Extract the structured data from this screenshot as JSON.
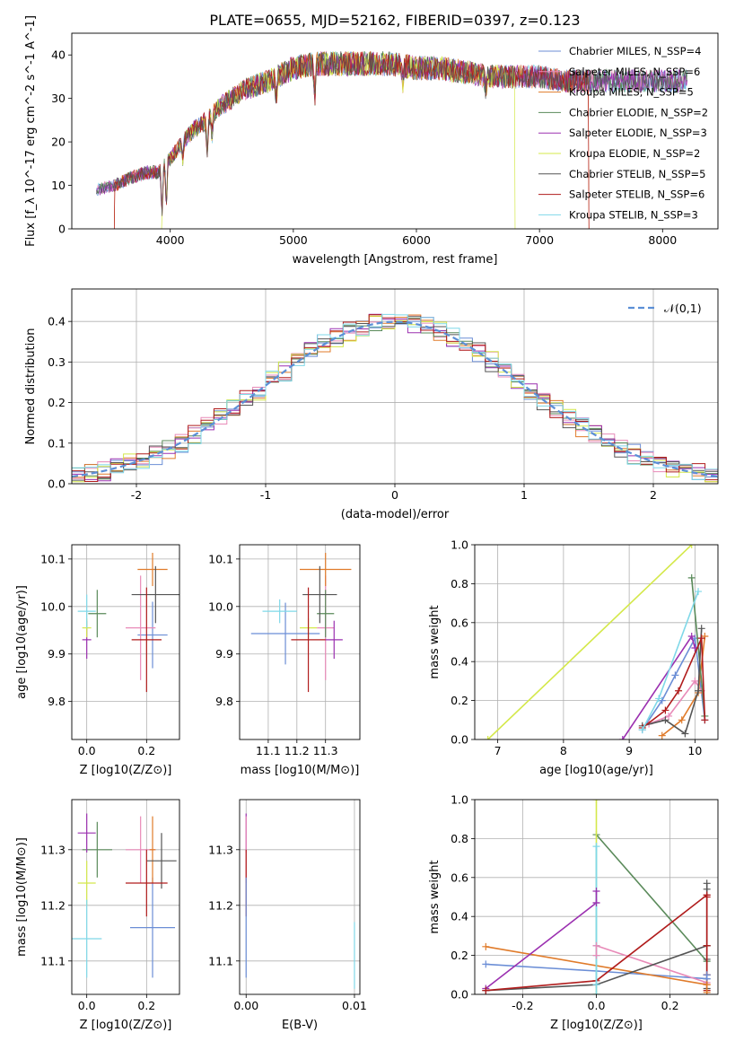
{
  "title": "PLATE=0655, MJD=52162, FIBERID=0397, z=0.123",
  "colors": {
    "Chabrier MILES": "#6b8ed6",
    "Salpeter MILES": "#e88ab8",
    "Kroupa MILES": "#e07b2a",
    "Chabrier ELODIE": "#5a8a5a",
    "Salpeter ELODIE": "#9b30b0",
    "Kroupa ELODIE": "#d4e84a",
    "Chabrier STELIB": "#555555",
    "Salpeter STELIB": "#b01c1c",
    "Kroupa STELIB": "#7fd8e8",
    "normal": "#5b8fd6"
  },
  "models": [
    "Chabrier MILES",
    "Salpeter MILES",
    "Kroupa MILES",
    "Chabrier ELODIE",
    "Salpeter ELODIE",
    "Kroupa ELODIE",
    "Chabrier STELIB",
    "Salpeter STELIB",
    "Kroupa STELIB"
  ],
  "chart_data": [
    {
      "id": "spectrum",
      "type": "line",
      "xlabel": "wavelength [Angstrom, rest frame]",
      "ylabel": "Flux [f_λ 10^-17 erg cm^-2 s^-1 A^-1]",
      "xlim": [
        3200,
        8450
      ],
      "ylim": [
        0,
        45
      ],
      "xticks": [
        4000,
        5000,
        6000,
        7000,
        8000
      ],
      "yticks": [
        0,
        10,
        20,
        30,
        40
      ],
      "legend": [
        "Chabrier MILES, N_SSP=4",
        "Salpeter MILES, N_SSP=6",
        "Kroupa MILES, N_SSP=5",
        "Chabrier ELODIE, N_SSP=2",
        "Salpeter ELODIE, N_SSP=3",
        "Kroupa ELODIE, N_SSP=2",
        "Chabrier STELIB, N_SSP=5",
        "Salpeter STELIB, N_SSP=6",
        "Kroupa STELIB, N_SSP=3"
      ],
      "legend_loc": "right",
      "continuum": [
        [
          3400,
          9
        ],
        [
          3550,
          10
        ],
        [
          3700,
          12
        ],
        [
          3800,
          13
        ],
        [
          3900,
          13
        ],
        [
          4000,
          16
        ],
        [
          4100,
          20
        ],
        [
          4200,
          23
        ],
        [
          4300,
          25
        ],
        [
          4400,
          28
        ],
        [
          4500,
          30
        ],
        [
          4600,
          32
        ],
        [
          4800,
          34
        ],
        [
          5000,
          37
        ],
        [
          5200,
          38
        ],
        [
          5400,
          38
        ],
        [
          5600,
          38
        ],
        [
          5800,
          38
        ],
        [
          6000,
          37
        ],
        [
          6200,
          37
        ],
        [
          6400,
          36
        ],
        [
          6600,
          35
        ],
        [
          6800,
          35
        ],
        [
          7000,
          35
        ],
        [
          7200,
          34
        ],
        [
          7400,
          34
        ],
        [
          7600,
          34
        ],
        [
          7800,
          34
        ],
        [
          8000,
          34
        ],
        [
          8200,
          34
        ]
      ],
      "absorptions": [
        [
          3933,
          3
        ],
        [
          3968,
          5
        ],
        [
          4102,
          16
        ],
        [
          4300,
          18
        ],
        [
          4340,
          21
        ],
        [
          4861,
          29
        ],
        [
          5175,
          30
        ],
        [
          5890,
          33
        ],
        [
          6563,
          32
        ]
      ],
      "cutoffs": [
        {
          "model": "Salpeter STELIB",
          "range": [
            3550,
            7400
          ]
        },
        {
          "model": "Kroupa ELODIE",
          "range": [
            3930,
            6800
          ]
        },
        {
          "model": "Kroupa MILES",
          "range": [
            3550,
            7400
          ]
        }
      ]
    },
    {
      "id": "residuals",
      "type": "histogram",
      "xlabel": "(data-model)/error",
      "ylabel": "Normed distribution",
      "xlim": [
        -2.5,
        2.5
      ],
      "ylim": [
        0,
        0.48
      ],
      "xticks": [
        -2,
        -1,
        0,
        1,
        2
      ],
      "yticks": [
        0.0,
        0.1,
        0.2,
        0.3,
        0.4
      ],
      "bin_width": 0.1,
      "legend": [
        "𝒩(0,1)"
      ],
      "legend_loc": "top-right"
    },
    {
      "id": "age_vs_Z",
      "type": "errorbar",
      "xlabel": "Z [log10(Z/Z⊙)]",
      "ylabel": "age  [log10(age/yr)]",
      "xlim": [
        -0.05,
        0.31
      ],
      "ylim": [
        9.72,
        10.13
      ],
      "xticks": [
        0.0,
        0.2
      ],
      "yticks": [
        9.8,
        9.9,
        10.0,
        10.1
      ],
      "points": [
        {
          "model": "Chabrier MILES",
          "x": 0.22,
          "xerr": 0.05,
          "y": 9.94,
          "yerr": 0.07
        },
        {
          "model": "Salpeter MILES",
          "x": 0.18,
          "xerr": 0.05,
          "y": 9.955,
          "yerr": 0.11
        },
        {
          "model": "Kroupa MILES",
          "x": 0.22,
          "xerr": 0.05,
          "y": 10.078,
          "yerr": 0.035
        },
        {
          "model": "Chabrier ELODIE",
          "x": 0.035,
          "xerr": 0.03,
          "y": 9.985,
          "yerr": 0.05
        },
        {
          "model": "Salpeter ELODIE",
          "x": 0.0,
          "xerr": 0.015,
          "y": 9.93,
          "yerr": 0.04
        },
        {
          "model": "Kroupa ELODIE",
          "x": 0.0,
          "xerr": 0.015,
          "y": 9.955,
          "yerr": 0.02
        },
        {
          "model": "Chabrier STELIB",
          "x": 0.23,
          "xerr": 0.08,
          "y": 10.025,
          "yerr": 0.06
        },
        {
          "model": "Salpeter STELIB",
          "x": 0.2,
          "xerr": 0.05,
          "y": 9.93,
          "yerr": 0.11
        },
        {
          "model": "Kroupa STELIB",
          "x": 0.0,
          "xerr": 0.03,
          "y": 9.99,
          "yerr": 0.035
        }
      ]
    },
    {
      "id": "age_vs_mass",
      "type": "errorbar",
      "xlabel": "mass [log10(M/M⊙)]",
      "ylabel": "",
      "xlim": [
        11.0,
        11.42
      ],
      "ylim": [
        9.72,
        10.13
      ],
      "xticks": [
        11.1,
        11.2,
        11.3
      ],
      "yticks": [
        9.8,
        9.9,
        10.0,
        10.1
      ],
      "points": [
        {
          "model": "Chabrier MILES",
          "x": 11.16,
          "xerr": 0.12,
          "y": 9.943,
          "yerr": 0.065
        },
        {
          "model": "Salpeter MILES",
          "x": 11.3,
          "xerr": 0.03,
          "y": 9.955,
          "yerr": 0.11
        },
        {
          "model": "Kroupa MILES",
          "x": 11.3,
          "xerr": 0.09,
          "y": 10.078,
          "yerr": 0.035
        },
        {
          "model": "Chabrier ELODIE",
          "x": 11.3,
          "xerr": 0.03,
          "y": 9.985,
          "yerr": 0.05
        },
        {
          "model": "Salpeter ELODIE",
          "x": 11.33,
          "xerr": 0.03,
          "y": 9.93,
          "yerr": 0.04
        },
        {
          "model": "Kroupa ELODIE",
          "x": 11.24,
          "xerr": 0.03,
          "y": 9.955,
          "yerr": 0.02
        },
        {
          "model": "Chabrier STELIB",
          "x": 11.28,
          "xerr": 0.06,
          "y": 10.025,
          "yerr": 0.06
        },
        {
          "model": "Salpeter STELIB",
          "x": 11.24,
          "xerr": 0.06,
          "y": 9.93,
          "yerr": 0.11
        },
        {
          "model": "Kroupa STELIB",
          "x": 11.14,
          "xerr": 0.06,
          "y": 9.99,
          "yerr": 0.025
        }
      ]
    },
    {
      "id": "weight_vs_age",
      "type": "line",
      "xlabel": "age  [log10(age/yr)]",
      "ylabel": "mass weight",
      "xlim": [
        6.65,
        10.35
      ],
      "ylim": [
        0,
        1
      ],
      "xticks": [
        7,
        8,
        9,
        10
      ],
      "yticks": [
        0.0,
        0.2,
        0.4,
        0.6,
        0.8,
        1.0
      ],
      "series": [
        {
          "model": "Kroupa ELODIE",
          "x": [
            6.85,
            9.95
          ],
          "y": [
            0.0,
            1.0
          ]
        },
        {
          "model": "Chabrier MILES",
          "x": [
            9.2,
            9.5,
            9.7,
            10.0,
            10.15
          ],
          "y": [
            0.05,
            0.2,
            0.33,
            0.52,
            0.1
          ]
        },
        {
          "model": "Salpeter MILES",
          "x": [
            9.3,
            9.6,
            10.0,
            10.1
          ],
          "y": [
            0.08,
            0.12,
            0.3,
            0.25
          ]
        },
        {
          "model": "Kroupa MILES",
          "x": [
            9.5,
            9.8,
            10.05,
            10.15
          ],
          "y": [
            0.02,
            0.1,
            0.24,
            0.53
          ]
        },
        {
          "model": "Chabrier ELODIE",
          "x": [
            9.95,
            10.15
          ],
          "y": [
            0.83,
            0.12
          ]
        },
        {
          "model": "Salpeter ELODIE",
          "x": [
            8.9,
            9.95,
            10.0
          ],
          "y": [
            0.0,
            0.53,
            0.47
          ]
        },
        {
          "model": "Chabrier STELIB",
          "x": [
            9.2,
            9.55,
            9.85,
            10.05,
            10.1
          ],
          "y": [
            0.07,
            0.1,
            0.03,
            0.25,
            0.57
          ]
        },
        {
          "model": "Salpeter STELIB",
          "x": [
            9.2,
            9.55,
            9.75,
            10.1,
            10.15
          ],
          "y": [
            0.06,
            0.15,
            0.25,
            0.52,
            0.1
          ]
        },
        {
          "model": "Kroupa STELIB",
          "x": [
            9.2,
            9.45,
            10.05
          ],
          "y": [
            0.05,
            0.21,
            0.76
          ]
        }
      ]
    },
    {
      "id": "mass_vs_Z",
      "type": "errorbar",
      "xlabel": "Z [log10(Z/Z⊙)]",
      "ylabel": "mass [log10(M/M⊙)]",
      "xlim": [
        -0.05,
        0.31
      ],
      "ylim": [
        11.04,
        11.39
      ],
      "xticks": [
        0.0,
        0.2
      ],
      "yticks": [
        11.1,
        11.2,
        11.3
      ],
      "points": [
        {
          "model": "Chabrier MILES",
          "x": 0.22,
          "xerr": 0.075,
          "y": 11.16,
          "yerr": 0.09
        },
        {
          "model": "Salpeter MILES",
          "x": 0.18,
          "xerr": 0.05,
          "y": 11.3,
          "yerr": 0.06
        },
        {
          "model": "Kroupa MILES",
          "x": 0.22,
          "xerr": 0.01,
          "y": 11.3,
          "yerr": 0.06
        },
        {
          "model": "Chabrier ELODIE",
          "x": 0.035,
          "xerr": 0.05,
          "y": 11.3,
          "yerr": 0.05
        },
        {
          "model": "Salpeter ELODIE",
          "x": 0.0,
          "xerr": 0.03,
          "y": 11.33,
          "yerr": 0.035
        },
        {
          "model": "Kroupa ELODIE",
          "x": 0.0,
          "xerr": 0.03,
          "y": 11.24,
          "yerr": 0.04
        },
        {
          "model": "Chabrier STELIB",
          "x": 0.25,
          "xerr": 0.05,
          "y": 11.28,
          "yerr": 0.05
        },
        {
          "model": "Salpeter STELIB",
          "x": 0.2,
          "xerr": 0.07,
          "y": 11.24,
          "yerr": 0.06
        },
        {
          "model": "Kroupa STELIB",
          "x": 0.0,
          "xerr": 0.05,
          "y": 11.14,
          "yerr": 0.07
        }
      ]
    },
    {
      "id": "mass_vs_ebv",
      "type": "errorbar",
      "xlabel": "E(B-V)",
      "ylabel": "",
      "xlim": [
        -0.0006,
        0.0105
      ],
      "ylim": [
        11.04,
        11.39
      ],
      "xticks": [
        0.0,
        0.01
      ],
      "yticks": [
        11.1,
        11.2,
        11.3
      ],
      "points": [
        {
          "model": "Salpeter ELODIE",
          "x": 0.0,
          "y": 11.33,
          "yerr": 0.035
        },
        {
          "model": "Salpeter MILES",
          "x": 0.0,
          "y": 11.3,
          "yerr": 0.06
        },
        {
          "model": "Salpeter STELIB",
          "x": 0.0,
          "y": 11.24,
          "yerr": 0.06
        },
        {
          "model": "Chabrier MILES",
          "x": 0.0,
          "y": 11.16,
          "yerr": 0.09
        },
        {
          "model": "Kroupa STELIB",
          "x": 0.01,
          "y": 11.11,
          "yerr": 0.06
        }
      ]
    },
    {
      "id": "weight_vs_Z",
      "type": "line",
      "xlabel": "Z [log10(Z/Z⊙)]",
      "ylabel": "mass weight",
      "xlim": [
        -0.33,
        0.33
      ],
      "ylim": [
        0,
        1
      ],
      "xticks": [
        -0.2,
        0.0,
        0.2
      ],
      "yticks": [
        0.0,
        0.2,
        0.4,
        0.6,
        0.8,
        1.0
      ],
      "series": [
        {
          "model": "Chabrier MILES",
          "x": [
            -0.3,
            0.0,
            0.3
          ],
          "y": [
            0.155,
            0.12,
            0.08
          ]
        },
        {
          "model": "Salpeter MILES",
          "x": [
            0.0,
            0.3
          ],
          "y": [
            0.25,
            0.06
          ]
        },
        {
          "model": "Kroupa MILES",
          "x": [
            -0.3,
            0.3
          ],
          "y": [
            0.245,
            0.05
          ]
        },
        {
          "model": "Chabrier ELODIE",
          "x": [
            0.0,
            0.3
          ],
          "y": [
            0.82,
            0.17
          ]
        },
        {
          "model": "Salpeter ELODIE",
          "x": [
            -0.3,
            0.0
          ],
          "y": [
            0.03,
            0.47
          ]
        },
        {
          "model": "Kroupa ELODIE",
          "x": [
            0.0,
            0.0
          ],
          "y": [
            0.0,
            1.0
          ]
        },
        {
          "model": "Chabrier STELIB",
          "x": [
            -0.3,
            0.0,
            0.3
          ],
          "y": [
            0.02,
            0.05,
            0.25
          ]
        },
        {
          "model": "Salpeter STELIB",
          "x": [
            -0.3,
            0.0,
            0.3
          ],
          "y": [
            0.02,
            0.07,
            0.51
          ]
        },
        {
          "model": "Kroupa STELIB",
          "x": [
            0.0,
            0.0
          ],
          "y": [
            0.0,
            0.76
          ]
        }
      ],
      "stacked_points": [
        {
          "model": "Chabrier STELIB",
          "x": 0.3,
          "y": [
            0.03,
            0.1,
            0.18,
            0.25,
            0.54,
            0.57
          ]
        },
        {
          "model": "Salpeter STELIB",
          "x": 0.3,
          "y": [
            0.02,
            0.1,
            0.25,
            0.5,
            0.51
          ]
        },
        {
          "model": "Chabrier MILES",
          "x": 0.3,
          "y": [
            0.08,
            0.1
          ]
        },
        {
          "model": "Kroupa MILES",
          "x": 0.3,
          "y": [
            0.01,
            0.05
          ]
        },
        {
          "model": "Kroupa STELIB",
          "x": 0.0,
          "y": [
            0.05,
            0.2,
            0.25,
            0.76
          ]
        },
        {
          "model": "Salpeter MILES",
          "x": 0.0,
          "y": [
            0.2,
            0.25
          ]
        },
        {
          "model": "Salpeter ELODIE",
          "x": 0.0,
          "y": [
            0.47,
            0.53
          ]
        }
      ]
    }
  ]
}
